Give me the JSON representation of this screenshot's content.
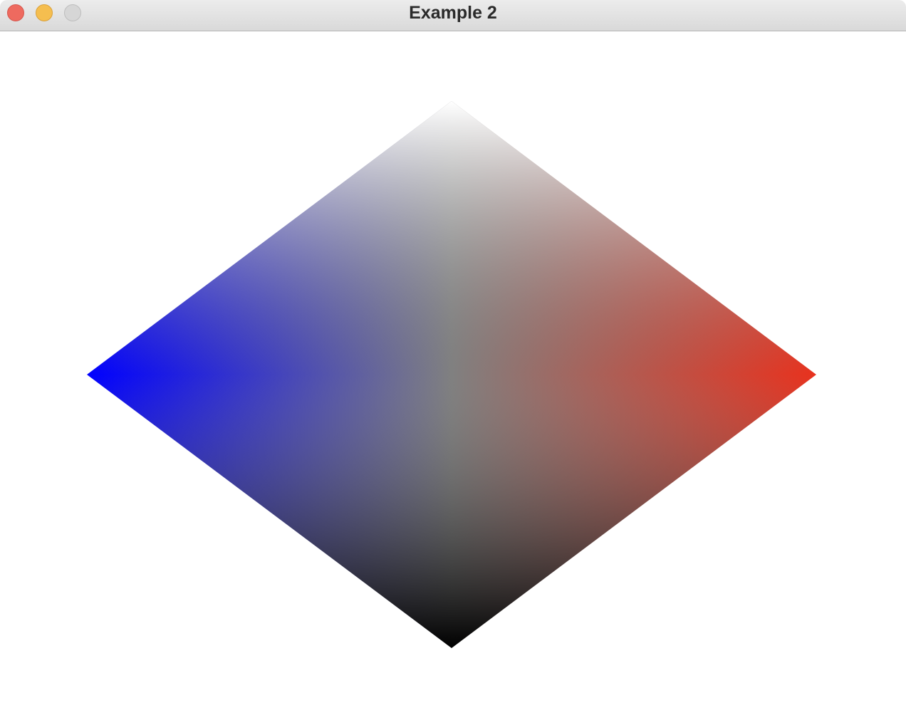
{
  "window": {
    "title": "Example 2",
    "controls": {
      "close": "close-button",
      "minimize": "minimize-button",
      "zoom": "zoom-button"
    }
  },
  "shape": {
    "kind": "diamond",
    "vertex_colors": {
      "top": "#ffffff",
      "left": "#0000ff",
      "right": "#e8321e",
      "bottom": "#000000"
    }
  }
}
